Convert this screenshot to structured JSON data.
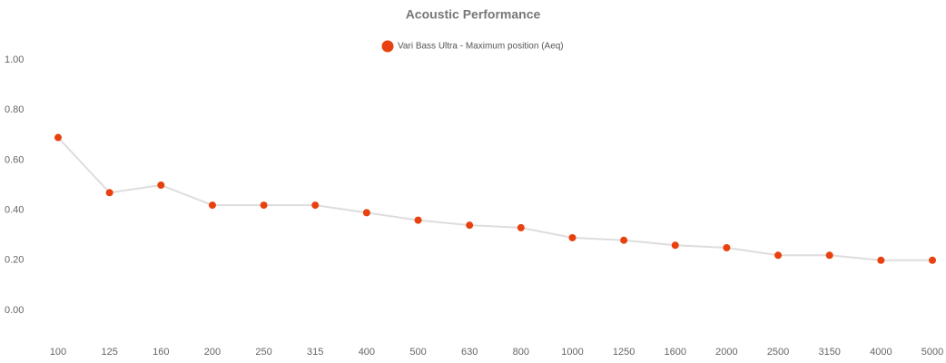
{
  "chart_data": {
    "type": "line",
    "title": "Acoustic Performance",
    "categories": [
      "100",
      "125",
      "160",
      "200",
      "250",
      "315",
      "400",
      "500",
      "630",
      "800",
      "1000",
      "1250",
      "1600",
      "2000",
      "2500",
      "3150",
      "4000",
      "5000"
    ],
    "series": [
      {
        "name": "Vari Bass Ultra - Maximum position (Aeq)",
        "color": "#e8410f",
        "line_color": "#dddddd",
        "values": [
          0.69,
          0.47,
          0.5,
          0.42,
          0.42,
          0.42,
          0.39,
          0.36,
          0.34,
          0.33,
          0.29,
          0.28,
          0.26,
          0.25,
          0.22,
          0.22,
          0.2,
          0.2
        ]
      }
    ],
    "ylim": [
      0,
      1
    ],
    "yticks": [
      {
        "value": 0,
        "label": "0.00"
      },
      {
        "value": 0.2,
        "label": "0.20"
      },
      {
        "value": 0.4,
        "label": "0.40"
      },
      {
        "value": 0.6,
        "label": "0.60"
      },
      {
        "value": 0.8,
        "label": "0.80"
      },
      {
        "value": 1,
        "label": "1.00"
      }
    ],
    "grid": false,
    "legend": "top"
  }
}
